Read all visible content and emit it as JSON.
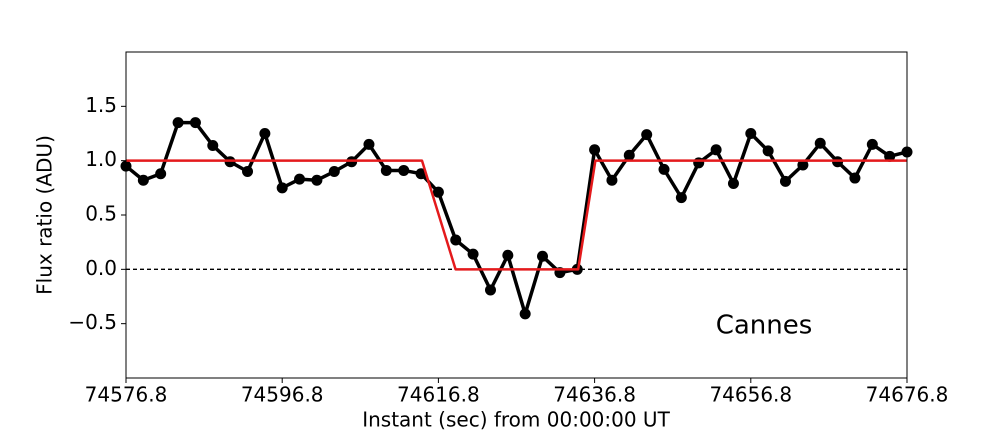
{
  "chart_data": {
    "type": "line",
    "x_label": "Instant (sec) from 00:00:00 UT",
    "y_label": "Flux ratio (ADU)",
    "annotations": [
      "Cannes"
    ],
    "xlim": [
      74576.8,
      74676.8
    ],
    "xticks": [
      74576.8,
      74596.8,
      74616.8,
      74636.8,
      74656.8,
      74676.8
    ],
    "ylim": [
      -1,
      2
    ],
    "yticks": [
      {
        "value": -0.5,
        "label": "−0.5"
      },
      {
        "value": 0,
        "label": "0.0"
      },
      0.5,
      {
        "value": 1,
        "label": "1.0"
      },
      1.5
    ],
    "hlines": [
      0
    ],
    "series": [
      {
        "color": "#000000",
        "markers": true,
        "x": [
          74576.8,
          74579.02,
          74581.24,
          74583.47,
          74585.69,
          74587.91,
          74590.13,
          74592.36,
          74594.58,
          74596.8,
          74599.02,
          74601.24,
          74603.47,
          74605.69,
          74607.91,
          74610.13,
          74612.36,
          74614.58,
          74616.8,
          74619.02,
          74621.24,
          74623.47,
          74625.69,
          74627.91,
          74630.13,
          74632.36,
          74634.58,
          74636.8,
          74639.02,
          74641.24,
          74643.47,
          74645.69,
          74647.91,
          74650.13,
          74652.36,
          74654.58,
          74656.8,
          74659.02,
          74661.24,
          74663.47,
          74665.69,
          74667.91,
          74670.13,
          74672.36,
          74674.58,
          74676.8
        ],
        "values": [
          0.95,
          0.82,
          0.88,
          1.35,
          1.35,
          1.14,
          0.99,
          0.9,
          1.25,
          0.75,
          0.83,
          0.82,
          0.9,
          0.99,
          1.15,
          0.91,
          0.91,
          0.88,
          0.71,
          0.27,
          0.14,
          -0.19,
          0.13,
          -0.41,
          0.12,
          -0.03,
          0.0,
          1.1,
          0.82,
          1.05,
          1.24,
          0.92,
          0.66,
          0.98,
          1.1,
          0.79,
          1.25,
          1.09,
          0.81,
          0.96,
          1.16,
          0.99,
          0.84,
          1.15,
          1.04,
          1.08
        ]
      },
      {
        "color": "#e41a1c",
        "markers": false,
        "x": [
          74576.8,
          74614.7,
          74619.0,
          74634.7,
          74636.9,
          74676.8
        ],
        "values": [
          1,
          1,
          0,
          0,
          1,
          1
        ]
      }
    ]
  }
}
